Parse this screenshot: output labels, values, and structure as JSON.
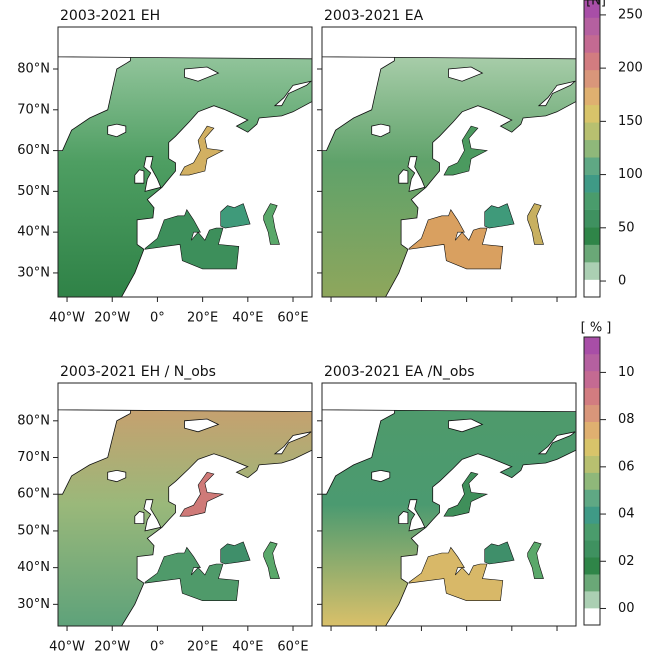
{
  "panels": [
    {
      "title": "2003-2021 EH",
      "sea": "#4f9d63",
      "top": "#a5cfab",
      "mid": "#4e9e62",
      "bottom": "#2f8247",
      "med": "#3d8f5b",
      "baltic": "#d2b062",
      "black": "#3f9a7a",
      "caspian": "#5aa86a"
    },
    {
      "title": "2003-2021 EA",
      "sea": "#6aa870",
      "top": "#bcd9bb",
      "mid": "#5fa26a",
      "bottom": "#8ea65c",
      "med": "#d9a060",
      "baltic": "#4b9a5f",
      "black": "#3f9a7a",
      "caspian": "#c8b060"
    },
    {
      "title": "2003-2021 EH / N_obs",
      "sea": "#8fb67a",
      "top": "#d29a6c",
      "mid": "#9ab87a",
      "bottom": "#5ea27a",
      "med": "#4f9a6a",
      "baltic": "#cf7a78",
      "black": "#3f8f6a",
      "caspian": "#5aa86a"
    },
    {
      "title": "2003-2021 EA /N_obs",
      "sea": "#5a9f6e",
      "top": "#4f9a6a",
      "mid": "#4b9a70",
      "bottom": "#d9c06a",
      "med": "#d8b868",
      "baltic": "#3f8f5a",
      "black": "#3f8f6a",
      "caspian": "#5aa86a"
    }
  ],
  "map_xlim": [
    -44,
    68.4
  ],
  "map_ylim": [
    24.1,
    90.3
  ],
  "lat_ticks": [
    {
      "value": 80,
      "label": "80°N"
    },
    {
      "value": 70,
      "label": "70°N"
    },
    {
      "value": 60,
      "label": "60°N"
    },
    {
      "value": 50,
      "label": "50°N"
    },
    {
      "value": 40,
      "label": "40°N"
    },
    {
      "value": 30,
      "label": "30°N"
    }
  ],
  "lon_ticks": [
    {
      "value": -40,
      "label": "40°W"
    },
    {
      "value": -20,
      "label": "20°W"
    },
    {
      "value": 0,
      "label": "0°"
    },
    {
      "value": 20,
      "label": "20°E"
    },
    {
      "value": 40,
      "label": "40°E"
    },
    {
      "value": 60,
      "label": "60°E"
    }
  ],
  "colorbars": [
    {
      "unit": "[N]",
      "lim": [
        -15,
        264
      ],
      "ticks": [
        250,
        200,
        150,
        100,
        50,
        0
      ],
      "colors": [
        "#ffffff",
        "#abcfb3",
        "#6aa877",
        "#2f8548",
        "#3f9160",
        "#4a9c6c",
        "#3f9a86",
        "#5fa884",
        "#8fb87a",
        "#b8c070",
        "#d8c46a",
        "#dfb070",
        "#d9967a",
        "#d27c80",
        "#c46a92",
        "#b560a0",
        "#a84ea7"
      ]
    },
    {
      "unit": "[ % ]",
      "lim": [
        -0.7,
        11.5
      ],
      "ticks": [
        {
          "value": 10,
          "label": "10"
        },
        {
          "value": 8,
          "label": "08"
        },
        {
          "value": 6,
          "label": "06"
        },
        {
          "value": 4,
          "label": "04"
        },
        {
          "value": 2,
          "label": "02"
        },
        {
          "value": 0,
          "label": "00"
        }
      ],
      "colors": [
        "#ffffff",
        "#abcfb3",
        "#6aa877",
        "#2f8548",
        "#3f9160",
        "#4a9c6c",
        "#3f9a86",
        "#5fa884",
        "#8fb87a",
        "#b8c070",
        "#d8c46a",
        "#dfb070",
        "#d9967a",
        "#d27c80",
        "#c46a92",
        "#b560a0",
        "#a84ea7"
      ]
    }
  ]
}
